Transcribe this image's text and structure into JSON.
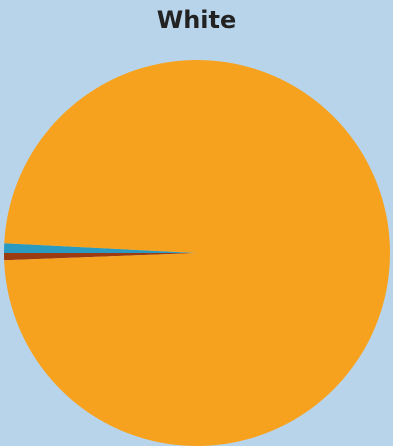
{
  "chart_data": {
    "type": "pie",
    "title": "White",
    "start_angle_deg": 180,
    "direction": "counterclockwise",
    "slices": [
      {
        "name": "",
        "value": 98.6,
        "color": "#f7a21f"
      },
      {
        "name": "",
        "value": 0.8,
        "color": "#2a9ac0"
      },
      {
        "name": "",
        "value": 0.6,
        "color": "#9c3a12"
      }
    ]
  }
}
